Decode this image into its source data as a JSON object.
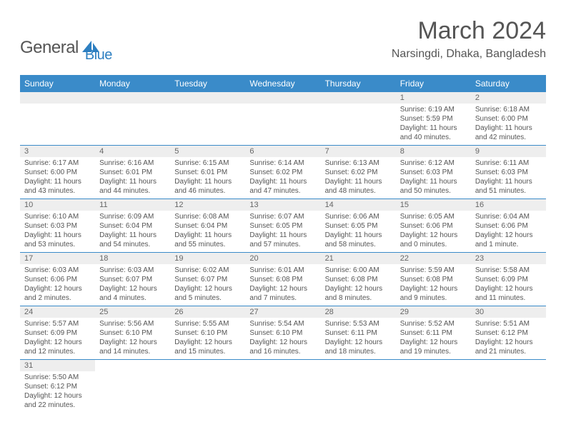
{
  "logo": {
    "text1": "General",
    "text2": "Blue"
  },
  "title": "March 2024",
  "location": "Narsingdi, Dhaka, Bangladesh",
  "day_headers": [
    "Sunday",
    "Monday",
    "Tuesday",
    "Wednesday",
    "Thursday",
    "Friday",
    "Saturday"
  ],
  "colors": {
    "header_bg": "#3a8bc9",
    "header_fg": "#ffffff",
    "daynum_bg": "#eeeeee",
    "border": "#3a8bc9",
    "logo_blue": "#2d7fc1",
    "text": "#555555"
  },
  "weeks": [
    [
      null,
      null,
      null,
      null,
      null,
      {
        "num": "1",
        "sunrise": "Sunrise: 6:19 AM",
        "sunset": "Sunset: 5:59 PM",
        "daylight": "Daylight: 11 hours and 40 minutes."
      },
      {
        "num": "2",
        "sunrise": "Sunrise: 6:18 AM",
        "sunset": "Sunset: 6:00 PM",
        "daylight": "Daylight: 11 hours and 42 minutes."
      }
    ],
    [
      {
        "num": "3",
        "sunrise": "Sunrise: 6:17 AM",
        "sunset": "Sunset: 6:00 PM",
        "daylight": "Daylight: 11 hours and 43 minutes."
      },
      {
        "num": "4",
        "sunrise": "Sunrise: 6:16 AM",
        "sunset": "Sunset: 6:01 PM",
        "daylight": "Daylight: 11 hours and 44 minutes."
      },
      {
        "num": "5",
        "sunrise": "Sunrise: 6:15 AM",
        "sunset": "Sunset: 6:01 PM",
        "daylight": "Daylight: 11 hours and 46 minutes."
      },
      {
        "num": "6",
        "sunrise": "Sunrise: 6:14 AM",
        "sunset": "Sunset: 6:02 PM",
        "daylight": "Daylight: 11 hours and 47 minutes."
      },
      {
        "num": "7",
        "sunrise": "Sunrise: 6:13 AM",
        "sunset": "Sunset: 6:02 PM",
        "daylight": "Daylight: 11 hours and 48 minutes."
      },
      {
        "num": "8",
        "sunrise": "Sunrise: 6:12 AM",
        "sunset": "Sunset: 6:03 PM",
        "daylight": "Daylight: 11 hours and 50 minutes."
      },
      {
        "num": "9",
        "sunrise": "Sunrise: 6:11 AM",
        "sunset": "Sunset: 6:03 PM",
        "daylight": "Daylight: 11 hours and 51 minutes."
      }
    ],
    [
      {
        "num": "10",
        "sunrise": "Sunrise: 6:10 AM",
        "sunset": "Sunset: 6:03 PM",
        "daylight": "Daylight: 11 hours and 53 minutes."
      },
      {
        "num": "11",
        "sunrise": "Sunrise: 6:09 AM",
        "sunset": "Sunset: 6:04 PM",
        "daylight": "Daylight: 11 hours and 54 minutes."
      },
      {
        "num": "12",
        "sunrise": "Sunrise: 6:08 AM",
        "sunset": "Sunset: 6:04 PM",
        "daylight": "Daylight: 11 hours and 55 minutes."
      },
      {
        "num": "13",
        "sunrise": "Sunrise: 6:07 AM",
        "sunset": "Sunset: 6:05 PM",
        "daylight": "Daylight: 11 hours and 57 minutes."
      },
      {
        "num": "14",
        "sunrise": "Sunrise: 6:06 AM",
        "sunset": "Sunset: 6:05 PM",
        "daylight": "Daylight: 11 hours and 58 minutes."
      },
      {
        "num": "15",
        "sunrise": "Sunrise: 6:05 AM",
        "sunset": "Sunset: 6:06 PM",
        "daylight": "Daylight: 12 hours and 0 minutes."
      },
      {
        "num": "16",
        "sunrise": "Sunrise: 6:04 AM",
        "sunset": "Sunset: 6:06 PM",
        "daylight": "Daylight: 12 hours and 1 minute."
      }
    ],
    [
      {
        "num": "17",
        "sunrise": "Sunrise: 6:03 AM",
        "sunset": "Sunset: 6:06 PM",
        "daylight": "Daylight: 12 hours and 2 minutes."
      },
      {
        "num": "18",
        "sunrise": "Sunrise: 6:03 AM",
        "sunset": "Sunset: 6:07 PM",
        "daylight": "Daylight: 12 hours and 4 minutes."
      },
      {
        "num": "19",
        "sunrise": "Sunrise: 6:02 AM",
        "sunset": "Sunset: 6:07 PM",
        "daylight": "Daylight: 12 hours and 5 minutes."
      },
      {
        "num": "20",
        "sunrise": "Sunrise: 6:01 AM",
        "sunset": "Sunset: 6:08 PM",
        "daylight": "Daylight: 12 hours and 7 minutes."
      },
      {
        "num": "21",
        "sunrise": "Sunrise: 6:00 AM",
        "sunset": "Sunset: 6:08 PM",
        "daylight": "Daylight: 12 hours and 8 minutes."
      },
      {
        "num": "22",
        "sunrise": "Sunrise: 5:59 AM",
        "sunset": "Sunset: 6:08 PM",
        "daylight": "Daylight: 12 hours and 9 minutes."
      },
      {
        "num": "23",
        "sunrise": "Sunrise: 5:58 AM",
        "sunset": "Sunset: 6:09 PM",
        "daylight": "Daylight: 12 hours and 11 minutes."
      }
    ],
    [
      {
        "num": "24",
        "sunrise": "Sunrise: 5:57 AM",
        "sunset": "Sunset: 6:09 PM",
        "daylight": "Daylight: 12 hours and 12 minutes."
      },
      {
        "num": "25",
        "sunrise": "Sunrise: 5:56 AM",
        "sunset": "Sunset: 6:10 PM",
        "daylight": "Daylight: 12 hours and 14 minutes."
      },
      {
        "num": "26",
        "sunrise": "Sunrise: 5:55 AM",
        "sunset": "Sunset: 6:10 PM",
        "daylight": "Daylight: 12 hours and 15 minutes."
      },
      {
        "num": "27",
        "sunrise": "Sunrise: 5:54 AM",
        "sunset": "Sunset: 6:10 PM",
        "daylight": "Daylight: 12 hours and 16 minutes."
      },
      {
        "num": "28",
        "sunrise": "Sunrise: 5:53 AM",
        "sunset": "Sunset: 6:11 PM",
        "daylight": "Daylight: 12 hours and 18 minutes."
      },
      {
        "num": "29",
        "sunrise": "Sunrise: 5:52 AM",
        "sunset": "Sunset: 6:11 PM",
        "daylight": "Daylight: 12 hours and 19 minutes."
      },
      {
        "num": "30",
        "sunrise": "Sunrise: 5:51 AM",
        "sunset": "Sunset: 6:12 PM",
        "daylight": "Daylight: 12 hours and 21 minutes."
      }
    ],
    [
      {
        "num": "31",
        "sunrise": "Sunrise: 5:50 AM",
        "sunset": "Sunset: 6:12 PM",
        "daylight": "Daylight: 12 hours and 22 minutes."
      },
      null,
      null,
      null,
      null,
      null,
      null
    ]
  ]
}
